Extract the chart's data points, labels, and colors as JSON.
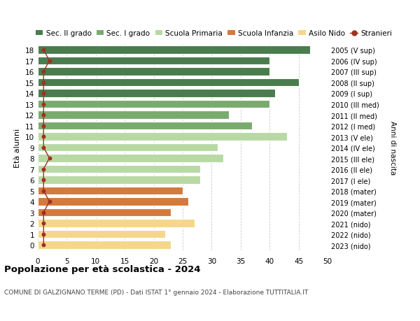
{
  "ages": [
    18,
    17,
    16,
    15,
    14,
    13,
    12,
    11,
    10,
    9,
    8,
    7,
    6,
    5,
    4,
    3,
    2,
    1,
    0
  ],
  "years": [
    "2005 (V sup)",
    "2006 (IV sup)",
    "2007 (III sup)",
    "2008 (II sup)",
    "2009 (I sup)",
    "2010 (III med)",
    "2011 (II med)",
    "2012 (I med)",
    "2013 (V ele)",
    "2014 (IV ele)",
    "2015 (III ele)",
    "2016 (II ele)",
    "2017 (I ele)",
    "2018 (mater)",
    "2019 (mater)",
    "2020 (mater)",
    "2021 (nido)",
    "2022 (nido)",
    "2023 (nido)"
  ],
  "values": [
    47,
    40,
    40,
    45,
    41,
    40,
    33,
    37,
    43,
    31,
    32,
    28,
    28,
    25,
    26,
    23,
    27,
    22,
    23
  ],
  "stranieri": [
    1,
    2,
    1,
    1,
    1,
    1,
    1,
    1,
    1,
    1,
    2,
    1,
    1,
    1,
    2,
    1,
    1,
    1,
    1
  ],
  "colors": {
    "sec2": "#4a7c4e",
    "sec1": "#7aab6e",
    "primaria": "#b8d9a4",
    "infanzia": "#d47a3c",
    "nido": "#f5d68a",
    "stranieri": "#a03020"
  },
  "bar_colors": [
    "#4a7c4e",
    "#4a7c4e",
    "#4a7c4e",
    "#4a7c4e",
    "#4a7c4e",
    "#7aab6e",
    "#7aab6e",
    "#7aab6e",
    "#b8d9a4",
    "#b8d9a4",
    "#b8d9a4",
    "#b8d9a4",
    "#b8d9a4",
    "#d47a3c",
    "#d47a3c",
    "#d47a3c",
    "#f5d68a",
    "#f5d68a",
    "#f5d68a"
  ],
  "title": "Popolazione per età scolastica - 2024",
  "subtitle": "COMUNE DI GALZIGNANO TERME (PD) - Dati ISTAT 1° gennaio 2024 - Elaborazione TUTTITALIA.IT",
  "ylabel": "Età alunni",
  "right_ylabel": "Anni di nascita",
  "xlim": [
    0,
    50
  ],
  "xticks": [
    0,
    5,
    10,
    15,
    20,
    25,
    30,
    35,
    40,
    45,
    50
  ],
  "legend_labels": [
    "Sec. II grado",
    "Sec. I grado",
    "Scuola Primaria",
    "Scuola Infanzia",
    "Asilo Nido",
    "Stranieri"
  ],
  "legend_colors": [
    "#4a7c4e",
    "#7aab6e",
    "#b8d9a4",
    "#d47a3c",
    "#f5d68a",
    "#a03020"
  ],
  "bg_color": "#ffffff",
  "grid_color": "#cccccc"
}
